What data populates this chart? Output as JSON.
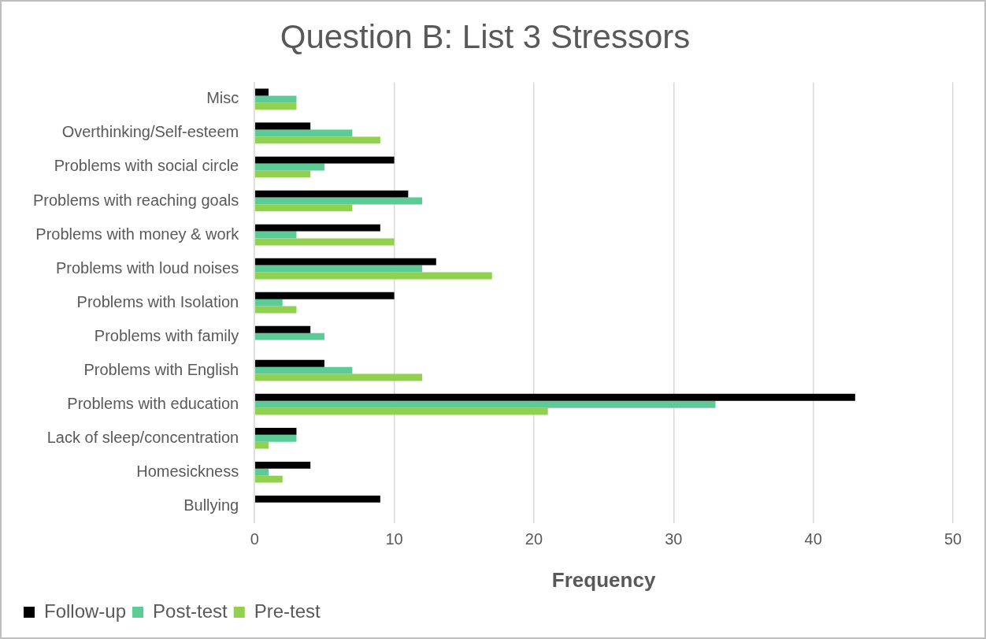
{
  "chart_data": {
    "type": "bar",
    "orientation": "horizontal",
    "title": "Question B: List 3 Stressors",
    "xlabel": "Frequency",
    "categories": [
      "Misc",
      "Overthinking/Self-esteem",
      "Problems with social circle",
      "Problems with reaching goals",
      "Problems with money & work",
      "Problems with loud noises",
      "Problems with Isolation",
      "Problems with family",
      "Problems with English",
      "Problems with education",
      "Lack of sleep/concentration",
      "Homesickness",
      "Bullying"
    ],
    "series": [
      {
        "name": "Follow-up",
        "color": "#000000",
        "values": [
          1,
          4,
          10,
          11,
          9,
          13,
          10,
          4,
          5,
          43,
          3,
          4,
          9
        ]
      },
      {
        "name": "Post-test",
        "color": "#5ccb96",
        "values": [
          3,
          7,
          5,
          12,
          3,
          12,
          2,
          5,
          7,
          33,
          3,
          1,
          0
        ]
      },
      {
        "name": "Pre-test",
        "color": "#92d050",
        "values": [
          3,
          9,
          4,
          7,
          10,
          17,
          3,
          0,
          12,
          21,
          1,
          2,
          0
        ]
      }
    ],
    "xlim": [
      0,
      50
    ],
    "xticks": [
      0,
      10,
      20,
      30,
      40,
      50
    ],
    "grid": "x",
    "legend": "bottom left"
  }
}
